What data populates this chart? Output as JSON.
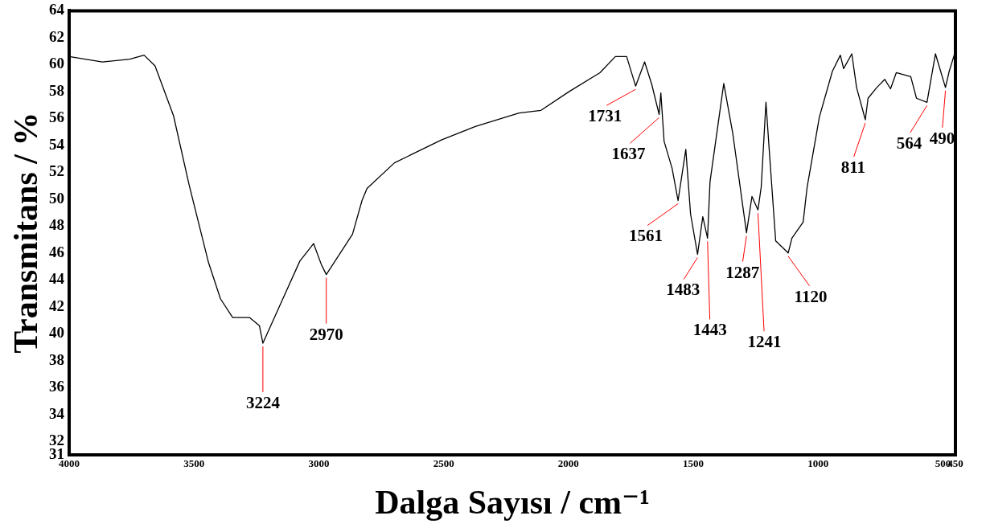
{
  "chart_data": {
    "type": "line",
    "xlabel": "Dalga Sayısı / cm⁻¹",
    "ylabel": "Transmitans / %",
    "color": "#000000",
    "grid": false,
    "legend": false,
    "marker": "none",
    "line_style": "solid",
    "x": [
      4000,
      3867,
      3757,
      3700,
      3656,
      3582,
      3520,
      3442,
      3394,
      3345,
      3277,
      3238,
      3224,
      3144,
      3076,
      3021,
      2989,
      2970,
      2865,
      2827,
      2807,
      2697,
      2509,
      2373,
      2198,
      2110,
      1997,
      1874,
      1812,
      1767,
      1731,
      1695,
      1666,
      1637,
      1630,
      1617,
      1585,
      1561,
      1530,
      1511,
      1483,
      1462,
      1443,
      1433,
      1378,
      1342,
      1287,
      1265,
      1241,
      1228,
      1209,
      1196,
      1170,
      1120,
      1105,
      1060,
      1044,
      995,
      943,
      911,
      898,
      865,
      846,
      811,
      800,
      765,
      733,
      710,
      687,
      629,
      606,
      564,
      530,
      490,
      475,
      450
    ],
    "values": [
      60.6,
      60.2,
      60.4,
      60.7,
      59.9,
      56.2,
      51.1,
      45.3,
      42.6,
      41.2,
      41.2,
      40.6,
      39.3,
      42.6,
      45.4,
      46.7,
      45.1,
      44.4,
      47.4,
      49.9,
      50.8,
      52.7,
      54.4,
      55.4,
      56.4,
      56.6,
      58.0,
      59.4,
      60.6,
      60.6,
      58.4,
      60.2,
      58.5,
      56.3,
      57.9,
      54.3,
      52.3,
      49.9,
      53.7,
      48.9,
      45.9,
      48.7,
      47.1,
      51.3,
      58.6,
      54.9,
      47.5,
      50.2,
      49.2,
      50.9,
      57.2,
      53.7,
      46.9,
      46.0,
      47.1,
      48.3,
      50.9,
      56.1,
      59.5,
      60.7,
      59.7,
      60.8,
      58.3,
      55.9,
      57.5,
      58.3,
      58.9,
      58.2,
      59.4,
      59.1,
      57.5,
      57.2,
      60.8,
      58.3,
      59.5,
      61.0
    ],
    "xlim": [
      4000,
      450
    ],
    "xticks": [
      4000,
      3500,
      3000,
      2500,
      2000,
      1500,
      1000,
      500,
      450
    ],
    "ylim": [
      31,
      64
    ],
    "yticks": [
      31,
      32,
      34,
      36,
      38,
      40,
      42,
      44,
      46,
      48,
      50,
      52,
      54,
      56,
      58,
      60,
      62,
      64
    ],
    "annotations": [
      {
        "text": "3224",
        "x": 3224,
        "y": 39.3
      },
      {
        "text": "2970",
        "x": 2970,
        "y": 44.4
      },
      {
        "text": "1731",
        "x": 1731,
        "y": 58.4
      },
      {
        "text": "1637",
        "x": 1637,
        "y": 56.3
      },
      {
        "text": "1561",
        "x": 1561,
        "y": 49.9
      },
      {
        "text": "1483",
        "x": 1483,
        "y": 45.9
      },
      {
        "text": "1443",
        "x": 1443,
        "y": 47.1
      },
      {
        "text": "1287",
        "x": 1287,
        "y": 47.5
      },
      {
        "text": "1241",
        "x": 1241,
        "y": 49.2
      },
      {
        "text": "1120",
        "x": 1120,
        "y": 46.0
      },
      {
        "text": "811",
        "x": 811,
        "y": 55.9
      },
      {
        "text": "564",
        "x": 564,
        "y": 57.2
      },
      {
        "text": "490",
        "x": 490,
        "y": 58.3
      }
    ]
  }
}
